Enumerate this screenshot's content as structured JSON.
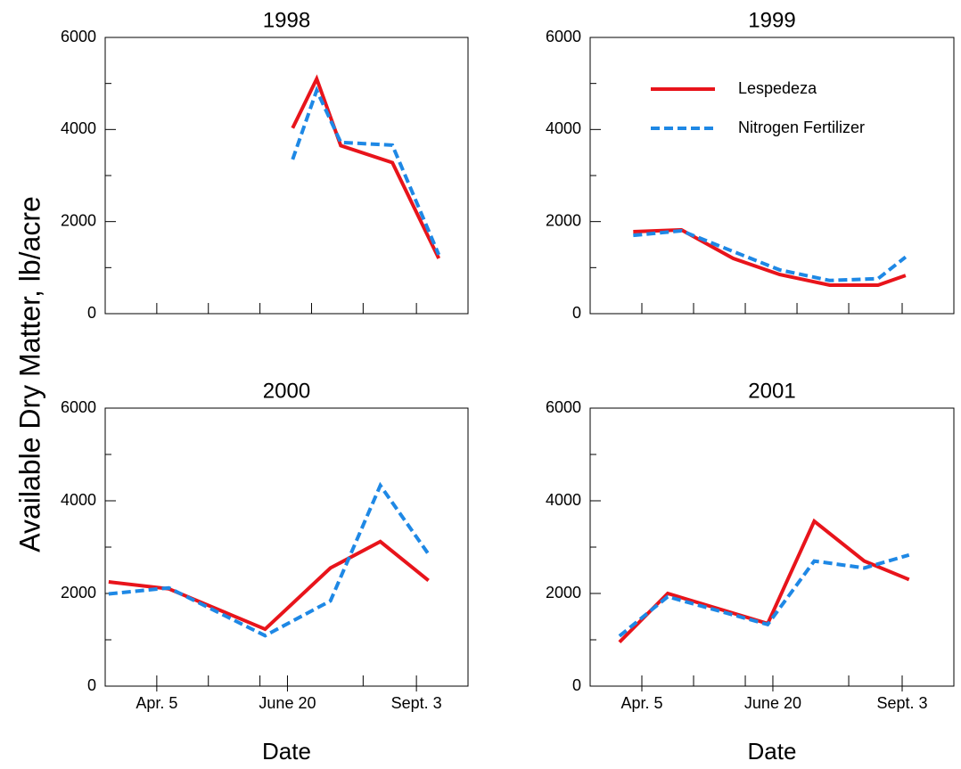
{
  "ylabel": "Available Dry Matter, lb/acre",
  "chart_data": [
    {
      "type": "line",
      "title": "1998",
      "xlim": [
        65,
        276
      ],
      "ylim": [
        0,
        6000
      ],
      "xticks": [
        {
          "value": 95,
          "label": null
        },
        {
          "value": 125,
          "label": null
        },
        {
          "value": 155,
          "label": null
        },
        {
          "value": 185,
          "label": null
        },
        {
          "value": 215,
          "label": null
        },
        {
          "value": 246,
          "label": null
        }
      ],
      "yticks": [
        0,
        {
          "value": 1000,
          "label": null
        },
        2000,
        {
          "value": 3000,
          "label": null
        },
        4000,
        {
          "value": 5000,
          "label": null
        },
        6000
      ],
      "series": [
        {
          "name": "Lespedeza",
          "color": "#e8141b",
          "linestyle": "solid",
          "x": [
            174,
            188,
            202,
            232,
            259
          ],
          "values": [
            4030,
            5100,
            3650,
            3280,
            1200
          ]
        },
        {
          "name": "Nitrogen Fertilizer",
          "color": "#1e88e5",
          "linestyle": "dashed",
          "x": [
            174,
            188,
            202,
            232,
            259
          ],
          "values": [
            3350,
            4850,
            3720,
            3660,
            1280
          ]
        }
      ]
    },
    {
      "type": "line",
      "title": "1999",
      "legend": "upper center",
      "xlim": [
        65,
        276
      ],
      "ylim": [
        0,
        6000
      ],
      "xticks": [
        {
          "value": 95,
          "label": null
        },
        {
          "value": 125,
          "label": null
        },
        {
          "value": 155,
          "label": null
        },
        {
          "value": 185,
          "label": null
        },
        {
          "value": 215,
          "label": null
        },
        {
          "value": 246,
          "label": null
        }
      ],
      "yticks": [
        0,
        {
          "value": 1000,
          "label": null
        },
        2000,
        {
          "value": 3000,
          "label": null
        },
        4000,
        {
          "value": 5000,
          "label": null
        },
        6000
      ],
      "series": [
        {
          "name": "Lespedeza",
          "color": "#e8141b",
          "linestyle": "solid",
          "x": [
            90,
            118,
            148,
            175,
            204,
            232,
            248
          ],
          "values": [
            1780,
            1820,
            1200,
            850,
            620,
            620,
            830
          ]
        },
        {
          "name": "Nitrogen Fertilizer",
          "color": "#1e88e5",
          "linestyle": "dashed",
          "x": [
            90,
            118,
            148,
            175,
            204,
            232,
            248
          ],
          "values": [
            1700,
            1800,
            1350,
            950,
            720,
            760,
            1230
          ]
        }
      ]
    },
    {
      "type": "line",
      "title": "2000",
      "xlabel": "Date",
      "xlim": [
        65,
        276
      ],
      "ylim": [
        0,
        6000
      ],
      "xticks": [
        {
          "value": 95,
          "label": "Apr. 5"
        },
        {
          "value": 125,
          "label": null
        },
        {
          "value": 155,
          "label": null
        },
        {
          "value": 171,
          "label": "June 20"
        },
        {
          "value": 215,
          "label": null
        },
        {
          "value": 246,
          "label": "Sept. 3"
        }
      ],
      "yticks": [
        0,
        {
          "value": 1000,
          "label": null
        },
        2000,
        {
          "value": 3000,
          "label": null
        },
        4000,
        {
          "value": 5000,
          "label": null
        },
        6000
      ],
      "series": [
        {
          "name": "Lespedeza",
          "color": "#e8141b",
          "linestyle": "solid",
          "x": [
            67,
            102,
            158,
            196,
            225,
            253
          ],
          "values": [
            2250,
            2100,
            1230,
            2550,
            3120,
            2280
          ]
        },
        {
          "name": "Nitrogen Fertilizer",
          "color": "#1e88e5",
          "linestyle": "dashed",
          "x": [
            67,
            102,
            158,
            196,
            225,
            253
          ],
          "values": [
            1990,
            2120,
            1090,
            1840,
            4330,
            2850
          ]
        }
      ]
    },
    {
      "type": "line",
      "title": "2001",
      "xlabel": "Date",
      "xlim": [
        65,
        276
      ],
      "ylim": [
        0,
        6000
      ],
      "xticks": [
        {
          "value": 95,
          "label": "Apr. 5"
        },
        {
          "value": 125,
          "label": null
        },
        {
          "value": 155,
          "label": null
        },
        {
          "value": 171,
          "label": "June 20"
        },
        {
          "value": 215,
          "label": null
        },
        {
          "value": 246,
          "label": "Sept. 3"
        }
      ],
      "yticks": [
        0,
        {
          "value": 1000,
          "label": null
        },
        2000,
        {
          "value": 3000,
          "label": null
        },
        4000,
        {
          "value": 5000,
          "label": null
        },
        6000
      ],
      "series": [
        {
          "name": "Lespedeza",
          "color": "#e8141b",
          "linestyle": "solid",
          "x": [
            82,
            110,
            168,
            195,
            224,
            250
          ],
          "values": [
            950,
            2000,
            1350,
            3560,
            2700,
            2300
          ]
        },
        {
          "name": "Nitrogen Fertilizer",
          "color": "#1e88e5",
          "linestyle": "dashed",
          "x": [
            82,
            110,
            168,
            195,
            224,
            250
          ],
          "values": [
            1080,
            1930,
            1330,
            2700,
            2550,
            2830
          ]
        }
      ]
    }
  ]
}
